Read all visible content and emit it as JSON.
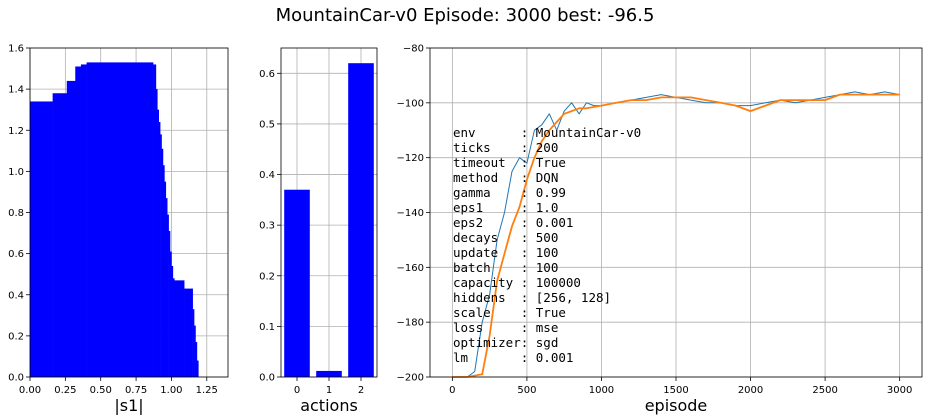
{
  "figure": {
    "title": "MountainCar-v0  Episode: 3000  best:   -96.5"
  },
  "chart_data": [
    {
      "type": "bar",
      "orientation": "horizontal-steps",
      "xlabel": "|s1|",
      "xlim": [
        0,
        1.4
      ],
      "ylim": [
        0,
        1.6
      ],
      "xticks": [
        0.0,
        0.25,
        0.5,
        0.75,
        1.0,
        1.25
      ],
      "xtick_labels": [
        "0.00",
        "0.25",
        "0.50",
        "0.75",
        "1.00",
        "1.25"
      ],
      "yticks": [
        0.0,
        0.2,
        0.4,
        0.6,
        0.8,
        1.0,
        1.2,
        1.4,
        1.6
      ],
      "ytick_labels": [
        "0.0",
        "0.2",
        "0.4",
        "0.6",
        "0.8",
        "1.0",
        "1.2",
        "1.4",
        "1.6"
      ],
      "grid": true,
      "color": "#0000ff",
      "bars": [
        {
          "x0": 0.0,
          "x1": 0.16,
          "h": 1.34
        },
        {
          "x0": 0.16,
          "x1": 0.26,
          "h": 1.38
        },
        {
          "x0": 0.26,
          "x1": 0.32,
          "h": 1.44
        },
        {
          "x0": 0.32,
          "x1": 0.36,
          "h": 1.51
        },
        {
          "x0": 0.36,
          "x1": 0.4,
          "h": 1.52
        },
        {
          "x0": 0.4,
          "x1": 0.87,
          "h": 1.53
        },
        {
          "x0": 0.87,
          "x1": 0.89,
          "h": 1.52
        },
        {
          "x0": 0.89,
          "x1": 0.9,
          "h": 1.4
        },
        {
          "x0": 0.9,
          "x1": 0.91,
          "h": 1.3
        },
        {
          "x0": 0.91,
          "x1": 0.92,
          "h": 1.24
        },
        {
          "x0": 0.92,
          "x1": 0.93,
          "h": 1.18
        },
        {
          "x0": 0.93,
          "x1": 0.94,
          "h": 1.11
        },
        {
          "x0": 0.94,
          "x1": 0.95,
          "h": 1.03
        },
        {
          "x0": 0.95,
          "x1": 0.96,
          "h": 0.95
        },
        {
          "x0": 0.96,
          "x1": 0.97,
          "h": 0.87
        },
        {
          "x0": 0.97,
          "x1": 0.98,
          "h": 0.79
        },
        {
          "x0": 0.98,
          "x1": 0.99,
          "h": 0.71
        },
        {
          "x0": 0.99,
          "x1": 1.0,
          "h": 0.61
        },
        {
          "x0": 1.0,
          "x1": 1.01,
          "h": 0.54
        },
        {
          "x0": 1.01,
          "x1": 1.02,
          "h": 0.48
        },
        {
          "x0": 1.02,
          "x1": 1.09,
          "h": 0.47
        },
        {
          "x0": 1.09,
          "x1": 1.15,
          "h": 0.43
        },
        {
          "x0": 1.15,
          "x1": 1.16,
          "h": 0.33
        },
        {
          "x0": 1.16,
          "x1": 1.17,
          "h": 0.25
        },
        {
          "x0": 1.17,
          "x1": 1.18,
          "h": 0.17
        },
        {
          "x0": 1.18,
          "x1": 1.19,
          "h": 0.08
        }
      ]
    },
    {
      "type": "bar",
      "xlabel": "actions",
      "categories": [
        "0",
        "1",
        "2"
      ],
      "values": [
        0.37,
        0.012,
        0.62
      ],
      "xlim": [
        -0.5,
        2.5
      ],
      "ylim": [
        0,
        0.65
      ],
      "yticks": [
        0.0,
        0.1,
        0.2,
        0.3,
        0.4,
        0.5,
        0.6
      ],
      "ytick_labels": [
        "0.0",
        "0.1",
        "0.2",
        "0.3",
        "0.4",
        "0.5",
        "0.6"
      ],
      "grid": true,
      "color": "#0000ff"
    },
    {
      "type": "line",
      "xlabel": "episode",
      "xlim": [
        -150,
        3150
      ],
      "ylim": [
        -200,
        -80
      ],
      "xticks": [
        0,
        500,
        1000,
        1500,
        2000,
        2500,
        3000
      ],
      "xtick_labels": [
        "0",
        "500",
        "1000",
        "1500",
        "2000",
        "2500",
        "3000"
      ],
      "yticks": [
        -200,
        -180,
        -160,
        -140,
        -120,
        -100,
        -80
      ],
      "ytick_labels": [
        "−200",
        "−180",
        "−160",
        "−140",
        "−120",
        "−100",
        "−80"
      ],
      "grid": true,
      "series": [
        {
          "color": "#1f77b4",
          "x": [
            0,
            50,
            100,
            150,
            200,
            250,
            300,
            350,
            400,
            450,
            500,
            550,
            600,
            650,
            700,
            750,
            800,
            850,
            900,
            950,
            1000,
            1100,
            1200,
            1300,
            1400,
            1500,
            1600,
            1700,
            1800,
            1900,
            2000,
            2100,
            2200,
            2300,
            2400,
            2500,
            2600,
            2700,
            2800,
            2900,
            3000
          ],
          "y": [
            -200,
            -200,
            -200,
            -198,
            -180,
            -170,
            -150,
            -140,
            -125,
            -120,
            -122,
            -110,
            -108,
            -104,
            -110,
            -103,
            -100,
            -104,
            -100,
            -101,
            -101,
            -100,
            -99,
            -98,
            -97,
            -98,
            -99,
            -100,
            -100,
            -101,
            -101,
            -100,
            -99,
            -100,
            -99,
            -98,
            -97,
            -96,
            -97,
            -96,
            -97
          ]
        },
        {
          "color": "#ff7f0e",
          "x": [
            0,
            100,
            200,
            250,
            300,
            350,
            400,
            450,
            500,
            550,
            600,
            650,
            700,
            750,
            800,
            850,
            900,
            1000,
            1100,
            1200,
            1300,
            1400,
            1500,
            1600,
            1700,
            1800,
            1900,
            2000,
            2100,
            2200,
            2300,
            2400,
            2500,
            2600,
            2700,
            2800,
            2900,
            3000
          ],
          "y": [
            -200,
            -200,
            -199,
            -185,
            -165,
            -155,
            -145,
            -138,
            -128,
            -120,
            -114,
            -110,
            -107,
            -104,
            -103,
            -102,
            -102,
            -101,
            -100,
            -99,
            -99,
            -98,
            -98,
            -98,
            -99,
            -100,
            -101,
            -103,
            -101,
            -99,
            -99,
            -99,
            -99,
            -97,
            -97,
            -97,
            -97,
            -97
          ]
        }
      ]
    }
  ],
  "info_lines": [
    "env      : MountainCar-v0",
    "ticks    : 200",
    "timeout  : True",
    "method   : DQN",
    "gamma    : 0.99",
    "eps1     : 1.0",
    "eps2     : 0.001",
    "decays   : 500",
    "update   : 100",
    "batch    : 100",
    "capacity : 100000",
    "hiddens  : [256, 128]",
    "scale    : True",
    "loss     : mse",
    "optimizer: sgd",
    "lm       : 0.001"
  ]
}
